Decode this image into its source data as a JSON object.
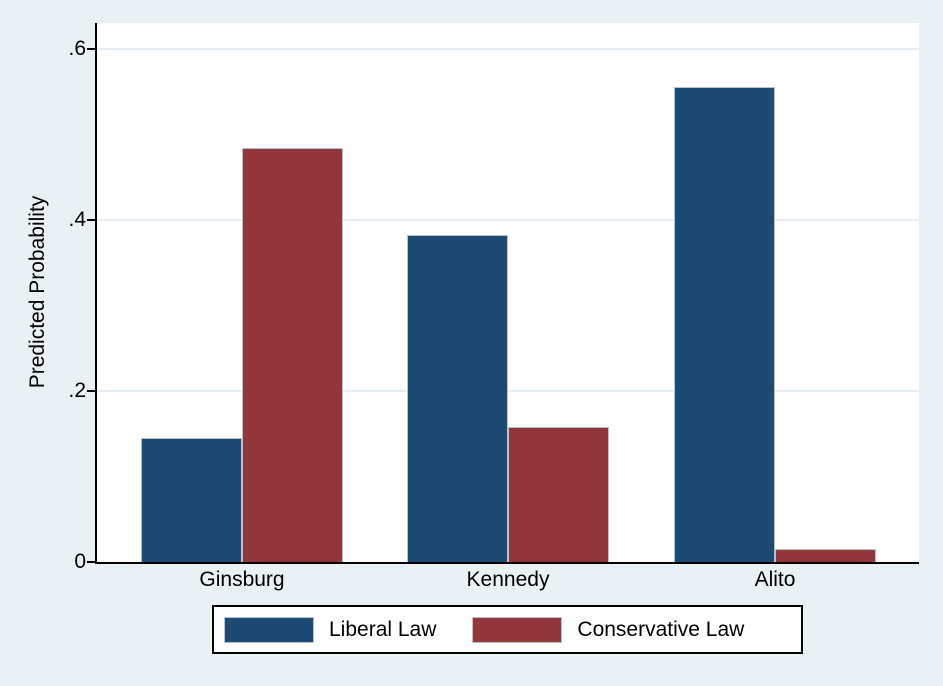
{
  "chart_data": {
    "type": "bar",
    "title": "",
    "xlabel": "",
    "ylabel": "Predicted Probability",
    "categories": [
      "Ginsburg",
      "Kennedy",
      "Alito"
    ],
    "series": [
      {
        "name": "Liberal Law",
        "color": "#1c4a72",
        "values": [
          0.145,
          0.382,
          0.555
        ]
      },
      {
        "name": "Conservative Law",
        "color": "#92363b",
        "values": [
          0.484,
          0.158,
          0.015
        ]
      }
    ],
    "ylim": [
      0,
      0.63
    ],
    "yticks": [
      {
        "value": 0.0,
        "label": "0"
      },
      {
        "value": 0.2,
        "label": ".2"
      },
      {
        "value": 0.4,
        "label": ".4"
      },
      {
        "value": 0.6,
        "label": ".6"
      }
    ],
    "grid": true,
    "legend_position": "bottom-center"
  },
  "colors": {
    "background": "#eaf1f4",
    "plot_background": "#ffffff",
    "gridline": "#e6edf3",
    "axis": "#000000",
    "bar_outline": "#b7c4cf",
    "text": "#000000"
  }
}
